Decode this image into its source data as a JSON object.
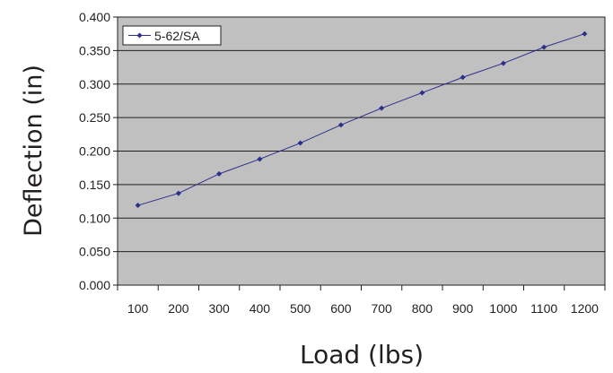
{
  "chart_data": {
    "type": "line",
    "title": "",
    "xlabel": "Load (lbs)",
    "ylabel": "Deflection (in)",
    "categories": [
      "100",
      "200",
      "300",
      "400",
      "500",
      "600",
      "700",
      "800",
      "900",
      "1000",
      "1100",
      "1200"
    ],
    "ylim": [
      0,
      0.4
    ],
    "yticks": [
      "0.000",
      "0.050",
      "0.100",
      "0.150",
      "0.200",
      "0.250",
      "0.300",
      "0.350",
      "0.400"
    ],
    "grid": "horizontal",
    "legend_position": "top-left",
    "plot_background": "#c0c0c0",
    "series": [
      {
        "name": "5-62/SA",
        "color": "#2b2e8c",
        "marker": "diamond",
        "values": [
          0.119,
          0.137,
          0.166,
          0.188,
          0.212,
          0.239,
          0.264,
          0.287,
          0.31,
          0.331,
          0.355,
          0.375
        ]
      }
    ]
  }
}
